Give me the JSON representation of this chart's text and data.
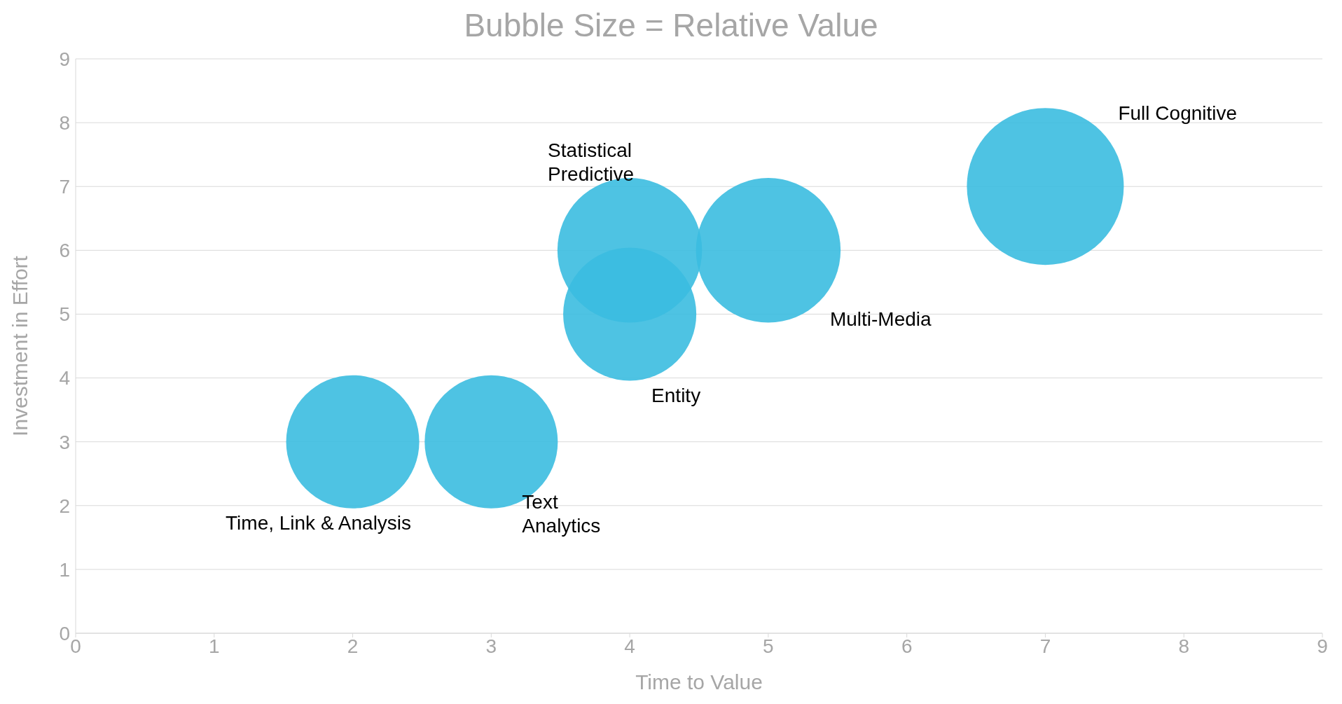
{
  "chart_data": {
    "type": "bubble",
    "title": "Bubble Size = Relative Value",
    "xlabel": "Time to Value",
    "ylabel": "Investment in Effort",
    "x": [
      2,
      3,
      4,
      4,
      5,
      7
    ],
    "values": [
      3,
      3,
      5,
      6,
      6,
      7
    ],
    "sizes": [
      0.72,
      0.72,
      0.72,
      0.85,
      0.85,
      1
    ],
    "color": "#3bbde0",
    "xlim": [
      0,
      9
    ],
    "xticks": [
      0,
      1,
      2,
      3,
      4,
      5,
      6,
      7,
      8,
      9
    ],
    "ylim": [
      0,
      9
    ],
    "yticks": [
      0,
      1,
      2,
      3,
      4,
      5,
      6,
      7,
      8,
      9
    ],
    "grid": "y",
    "annotations": [
      "Time, Link & Analysis",
      "Text\nAnalytics",
      "Entity",
      "Statistical\nPredictive",
      "Multi-Media",
      "Full Cognitive"
    ]
  }
}
